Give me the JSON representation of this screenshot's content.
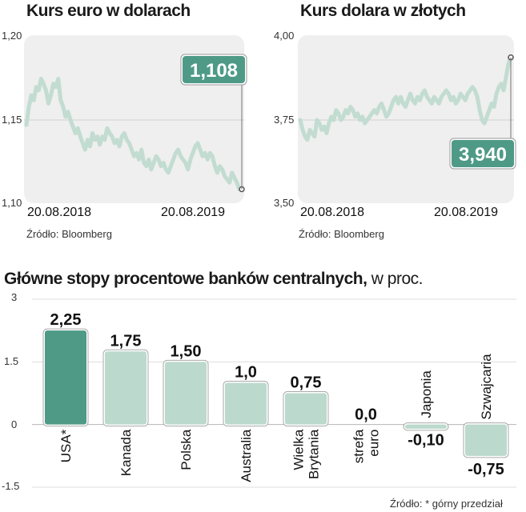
{
  "chart_data": [
    {
      "type": "line",
      "title": "Kurs euro w dolarach",
      "x_labels": [
        "20.08.2018",
        "20.08.2019"
      ],
      "y_ticks": [
        "1,20",
        "1,15",
        "1,10"
      ],
      "ylim": [
        1.1,
        1.2
      ],
      "source": "Źródło: Bloomberg",
      "last_value_label": "1,108",
      "values": [
        1.147,
        1.158,
        1.165,
        1.162,
        1.17,
        1.168,
        1.175,
        1.172,
        1.168,
        1.16,
        1.165,
        1.172,
        1.17,
        1.175,
        1.162,
        1.158,
        1.152,
        1.155,
        1.15,
        1.146,
        1.142,
        1.145,
        1.14,
        1.136,
        1.132,
        1.138,
        1.134,
        1.142,
        1.138,
        1.14,
        1.135,
        1.14,
        1.138,
        1.145,
        1.142,
        1.14,
        1.136,
        1.138,
        1.134,
        1.14,
        1.142,
        1.138,
        1.136,
        1.132,
        1.128,
        1.13,
        1.126,
        1.132,
        1.124,
        1.122,
        1.126,
        1.12,
        1.124,
        1.128,
        1.126,
        1.122,
        1.124,
        1.12,
        1.118,
        1.122,
        1.126,
        1.13,
        1.132,
        1.128,
        1.126,
        1.124,
        1.12,
        1.126,
        1.13,
        1.134,
        1.136,
        1.132,
        1.128,
        1.13,
        1.126,
        1.13,
        1.128,
        1.122,
        1.118,
        1.122,
        1.12,
        1.116,
        1.114,
        1.112,
        1.118,
        1.115,
        1.112,
        1.108,
        1.108
      ]
    },
    {
      "type": "line",
      "title": "Kurs dolara w złotych",
      "x_labels": [
        "20.08.2018",
        "20.08.2019"
      ],
      "y_ticks": [
        "4,00",
        "3,75",
        "3,50"
      ],
      "ylim": [
        3.5,
        4.0
      ],
      "source": "Źródło: Bloomberg",
      "last_value_label": "3,940",
      "values": [
        3.75,
        3.72,
        3.7,
        3.69,
        3.72,
        3.71,
        3.7,
        3.75,
        3.74,
        3.72,
        3.73,
        3.71,
        3.74,
        3.76,
        3.75,
        3.78,
        3.77,
        3.75,
        3.76,
        3.78,
        3.77,
        3.79,
        3.78,
        3.76,
        3.77,
        3.75,
        3.76,
        3.74,
        3.75,
        3.76,
        3.77,
        3.78,
        3.77,
        3.79,
        3.8,
        3.78,
        3.76,
        3.77,
        3.79,
        3.81,
        3.82,
        3.8,
        3.82,
        3.8,
        3.79,
        3.81,
        3.83,
        3.81,
        3.8,
        3.82,
        3.81,
        3.83,
        3.84,
        3.82,
        3.81,
        3.8,
        3.82,
        3.81,
        3.8,
        3.82,
        3.83,
        3.84,
        3.83,
        3.81,
        3.82,
        3.8,
        3.81,
        3.83,
        3.82,
        3.81,
        3.83,
        3.84,
        3.85,
        3.84,
        3.82,
        3.78,
        3.75,
        3.74,
        3.76,
        3.78,
        3.8,
        3.79,
        3.83,
        3.85,
        3.86,
        3.84,
        3.88,
        3.92,
        3.94
      ]
    },
    {
      "type": "bar",
      "title": "Główne stopy procentowe banków centralnych,",
      "title_suffix": "w proc.",
      "y_ticks": [
        "3",
        "1.5",
        "0",
        "-1.5"
      ],
      "ylim": [
        -1.5,
        3
      ],
      "categories": [
        "USA*",
        "Kanada",
        "Polska",
        "Australia",
        "Wielka Brytania",
        "strefa euro",
        "Japonia",
        "Szwajcaria"
      ],
      "values": [
        2.25,
        1.75,
        1.5,
        1.0,
        0.75,
        0.0,
        -0.1,
        -0.75
      ],
      "value_labels": [
        "2,25",
        "1,75",
        "1,50",
        "1,0",
        "0,75",
        "0,0",
        "-0,10",
        "-0,75"
      ],
      "highlight_color": "#4e9a87",
      "bar_color": "#bcd9cd",
      "source": "Źródło: * górny przedział"
    }
  ]
}
